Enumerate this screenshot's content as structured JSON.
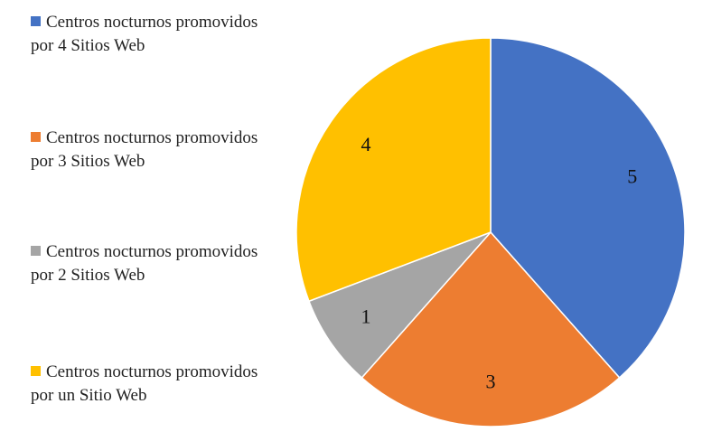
{
  "chart_data": {
    "type": "pie",
    "categories": [
      "Centros nocturnos promovidos por 4 Sitios Web",
      "Centros nocturnos promovidos por 3 Sitios Web",
      "Centros nocturnos promovidos por 2 Sitios Web",
      "Centros nocturnos promovidos por un Sitio Web"
    ],
    "values": [
      5,
      3,
      1,
      4
    ],
    "colors": [
      "#4472c4",
      "#ed7d31",
      "#a5a5a5",
      "#ffc000"
    ]
  }
}
